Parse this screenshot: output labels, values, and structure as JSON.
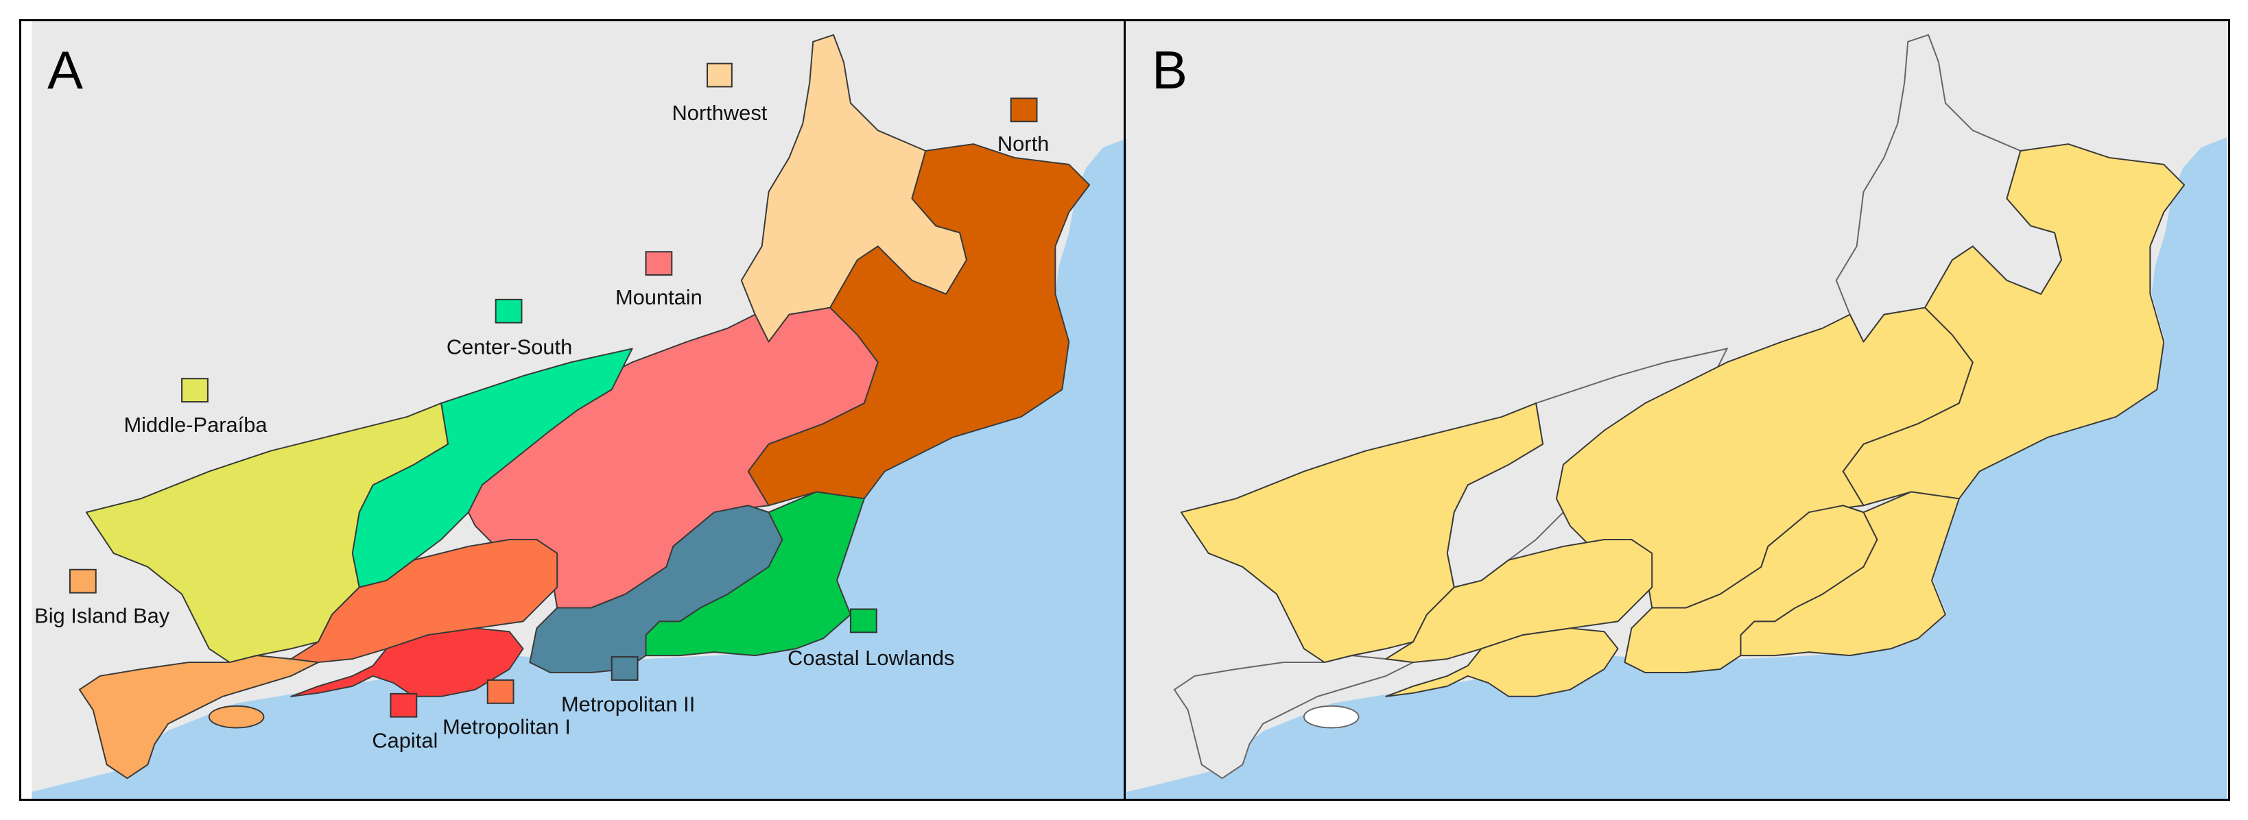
{
  "panels": [
    {
      "letter": "A"
    },
    {
      "letter": "B"
    }
  ],
  "colors": {
    "sea": "#a9d2f1",
    "land": "#e9e9e9",
    "highlight": "#fde07a",
    "border": "#3a3a3a"
  },
  "regions": [
    {
      "name": "Northwest",
      "color": "#fdd59a"
    },
    {
      "name": "North",
      "color": "#d66000"
    },
    {
      "name": "Mountain",
      "color": "#fd7878"
    },
    {
      "name": "Center-South",
      "color": "#00e896"
    },
    {
      "name": "Middle-Paraíba",
      "color": "#e3e65a"
    },
    {
      "name": "Big Island Bay",
      "color": "#fcaa60"
    },
    {
      "name": "Capital",
      "color": "#fc3c3c"
    },
    {
      "name": "Metropolitan I",
      "color": "#fc7648"
    },
    {
      "name": "Metropolitan II",
      "color": "#50869e"
    },
    {
      "name": "Coastal Lowlands",
      "color": "#00c84a"
    }
  ]
}
